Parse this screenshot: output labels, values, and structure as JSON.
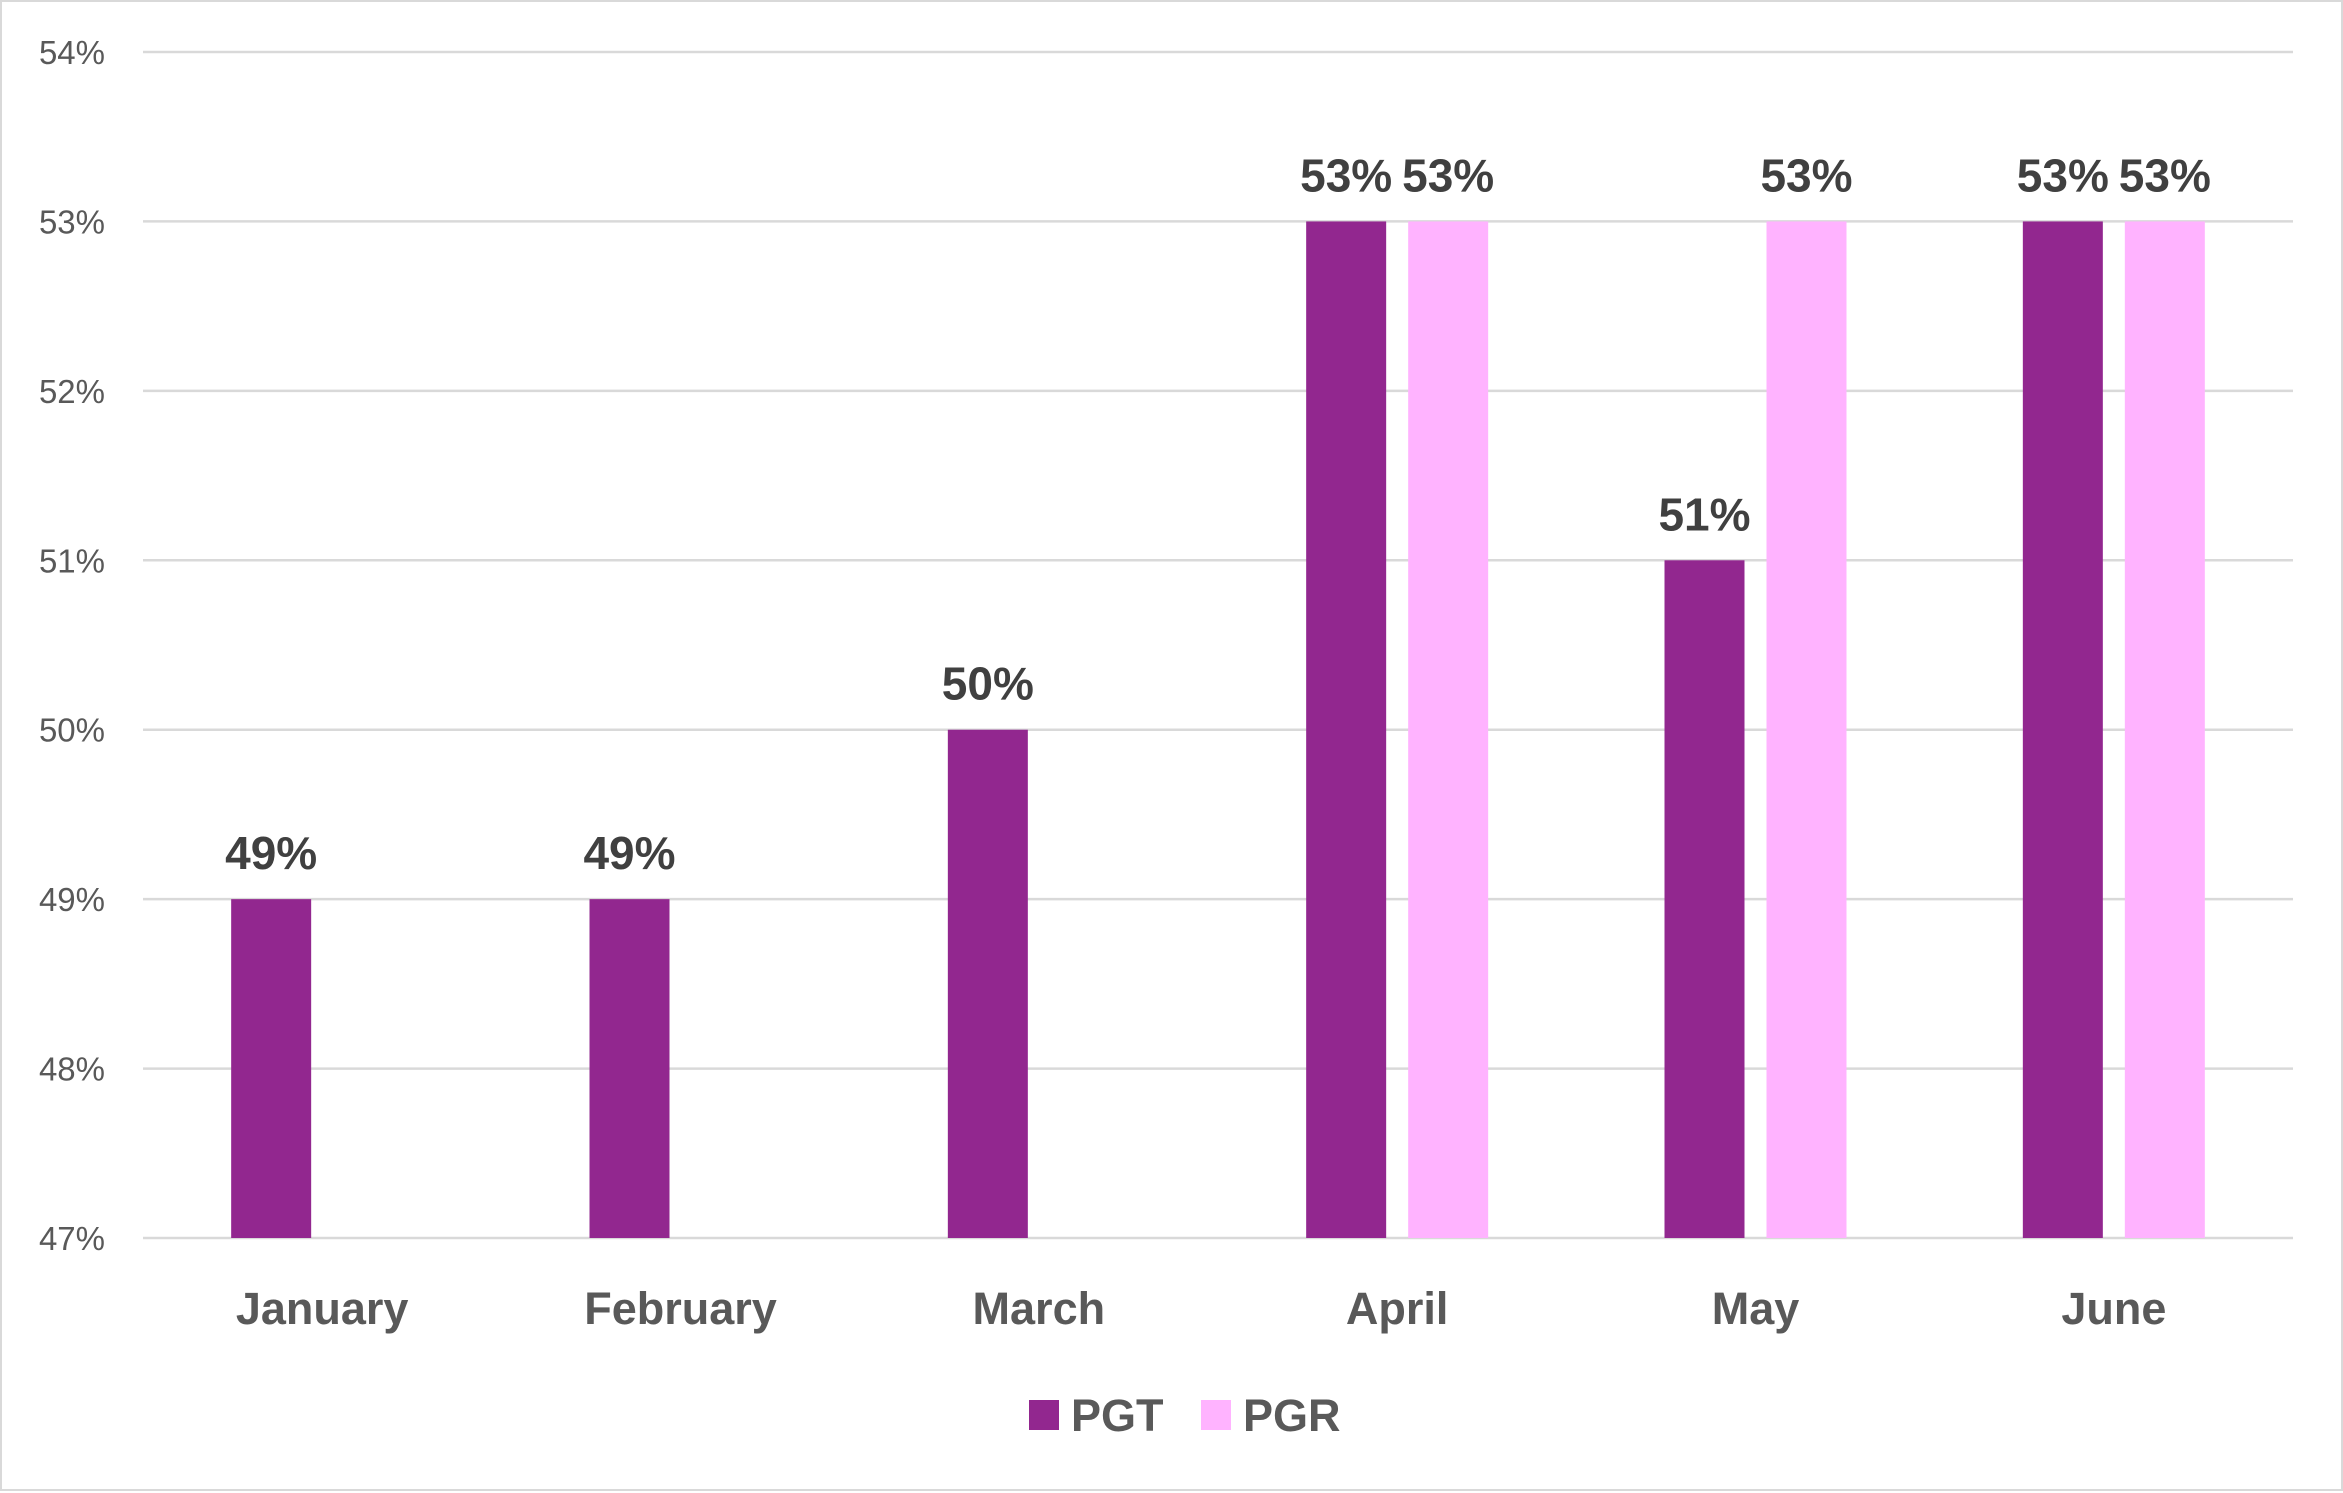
{
  "chart_data": {
    "type": "bar",
    "categories": [
      "January",
      "February",
      "March",
      "April",
      "May",
      "June"
    ],
    "series": [
      {
        "name": "PGT",
        "color": "#92278f",
        "values": [
          49,
          49,
          50,
          53,
          51,
          53
        ],
        "labels": [
          "49%",
          "49%",
          "50%",
          "53%",
          "51%",
          "53%"
        ]
      },
      {
        "name": "PGR",
        "color": "#ffb3ff",
        "values": [
          null,
          null,
          null,
          53,
          53,
          53
        ],
        "labels": [
          null,
          null,
          null,
          "53%",
          "53%",
          "53%"
        ]
      }
    ],
    "y_ticks": [
      "47%",
      "48%",
      "49%",
      "50%",
      "51%",
      "52%",
      "53%",
      "54%"
    ],
    "ylim": [
      47,
      54
    ],
    "grid": true,
    "legend": "bottom-center",
    "title": "",
    "xlabel": "",
    "ylabel": ""
  }
}
